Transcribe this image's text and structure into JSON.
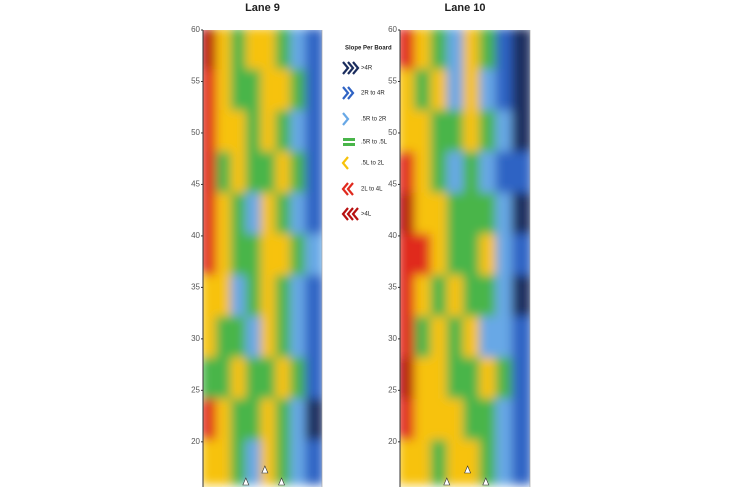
{
  "chart_data": {
    "type": "heatmap",
    "legend_title": "Slope Per Board",
    "categories": [
      ">4R",
      "2R to 4R",
      ".5R to 2R",
      ".5R to .5L",
      ".5L to 2L",
      "2L to 4L",
      ">4L"
    ],
    "colors": [
      "#1b2d5e",
      "#2f63c4",
      "#68a8e6",
      "#49b54a",
      "#f7c20a",
      "#e02a1e",
      "#b81010"
    ],
    "panels": [
      {
        "title": "Lane 9",
        "ylim": [
          16,
          60
        ],
        "yticks": [
          20,
          25,
          30,
          35,
          40,
          45,
          50,
          55,
          60
        ],
        "values": [
          [
            6,
            4,
            3,
            4,
            4,
            3,
            2,
            1
          ],
          [
            5,
            4,
            3,
            3,
            4,
            4,
            3,
            1
          ],
          [
            5,
            4,
            4,
            3,
            4,
            3,
            2,
            1
          ],
          [
            5,
            3,
            4,
            3,
            3,
            4,
            3,
            1
          ],
          [
            5,
            4,
            3,
            2,
            4,
            3,
            2,
            1
          ],
          [
            5,
            4,
            3,
            3,
            4,
            4,
            3,
            2
          ],
          [
            4,
            4,
            2,
            3,
            4,
            3,
            2,
            1
          ],
          [
            4,
            3,
            3,
            2,
            4,
            3,
            2,
            1
          ],
          [
            3,
            3,
            4,
            3,
            3,
            4,
            3,
            1
          ],
          [
            5,
            4,
            3,
            3,
            4,
            3,
            2,
            0
          ],
          [
            4,
            4,
            3,
            2,
            4,
            3,
            2,
            1
          ]
        ]
      },
      {
        "title": "Lane 10",
        "ylim": [
          16,
          60
        ],
        "yticks": [
          20,
          25,
          30,
          35,
          40,
          45,
          50,
          55,
          60
        ],
        "values": [
          [
            5,
            4,
            3,
            2,
            4,
            3,
            1,
            0
          ],
          [
            4,
            3,
            4,
            2,
            4,
            2,
            1,
            0
          ],
          [
            4,
            4,
            3,
            3,
            4,
            3,
            2,
            0
          ],
          [
            5,
            4,
            3,
            2,
            3,
            2,
            1,
            1
          ],
          [
            6,
            4,
            4,
            3,
            3,
            3,
            2,
            0
          ],
          [
            5,
            5,
            4,
            3,
            3,
            4,
            2,
            1
          ],
          [
            5,
            4,
            3,
            4,
            3,
            3,
            2,
            0
          ],
          [
            5,
            3,
            4,
            3,
            4,
            2,
            2,
            1
          ],
          [
            6,
            4,
            4,
            3,
            3,
            4,
            3,
            1
          ],
          [
            5,
            4,
            4,
            4,
            3,
            3,
            2,
            1
          ],
          [
            4,
            4,
            3,
            4,
            4,
            3,
            2,
            1
          ]
        ]
      }
    ]
  }
}
